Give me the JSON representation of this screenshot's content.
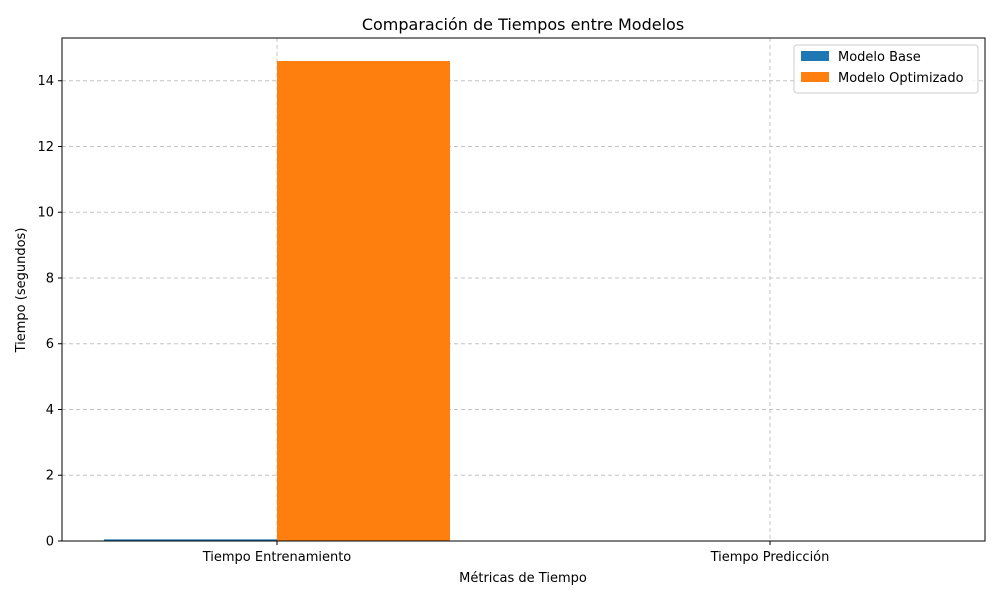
{
  "chart_data": {
    "type": "bar",
    "title": "Comparación de Tiempos entre Modelos",
    "xlabel": "Métricas de Tiempo",
    "ylabel": "Tiempo (segundos)",
    "categories": [
      "Tiempo Entrenamiento",
      "Tiempo Predicción"
    ],
    "series": [
      {
        "name": "Modelo Base",
        "values": [
          0.05,
          0.001
        ],
        "color": "#1f77b4"
      },
      {
        "name": "Modelo Optimizado",
        "values": [
          14.6,
          0.005
        ],
        "color": "#ff7f0e"
      }
    ],
    "ylim": [
      0,
      15.3
    ],
    "yticks": [
      0,
      2,
      4,
      6,
      8,
      10,
      12,
      14
    ],
    "grid": true,
    "legend_position": "top-right"
  }
}
